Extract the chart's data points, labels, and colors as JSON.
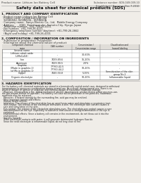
{
  "bg_color": "#f0ede8",
  "header_top_left": "Product name: Lithium Ion Battery Cell",
  "header_top_right": "Substance number: SDS-049-009-10\nEstablished / Revision: Dec.7,2010",
  "title": "Safety data sheet for chemical products (SDS)",
  "section1_title": "1. PRODUCT AND COMPANY IDENTIFICATION",
  "section1_lines": [
    "· Product name: Lithium Ion Battery Cell",
    "· Product code: Cylindrical-type cell",
    "  SV18650U, SV18650U-, SV18650A",
    "· Company name:  Sanyo Electric Co., Ltd.  Mobile Energy Company",
    "· Address:      2001  Kamikasai-cho, Sumoto-City, Hyogo, Japan",
    "· Telephone number:  +81-799-26-4111",
    "· Fax number:  +81-799-26-4121",
    "· Emergency telephone number (daytime): +81-799-26-2662",
    "  (Night and holiday) +81-799-26-4101"
  ],
  "section2_title": "2. COMPOSITION / INFORMATION ON INGREDIENTS",
  "section2_lines": [
    "· Substance or preparation: Preparation",
    "· Information about the chemical nature of product:"
  ],
  "table_headers": [
    "Component chemical\nname",
    "CAS number",
    "Concentration /\nConcentration range",
    "Classification and\nhazard labeling"
  ],
  "table_rows": [
    [
      "Several name",
      "",
      "",
      ""
    ],
    [
      "Lithium cobalt oxide\n(LiMnCoO4)",
      "-",
      "30-60%",
      ""
    ],
    [
      "Iron",
      "7439-89-6",
      "16-20%",
      "-"
    ],
    [
      "Aluminum",
      "7429-90-5",
      "2.0%",
      "-"
    ],
    [
      "Graphite\n(Made in graphite-1)\n(of Mo in graphite-1)",
      "77760-42-5\n77760-44-2",
      "10-20%",
      "-"
    ],
    [
      "Copper",
      "7440-50-8",
      "5-15%",
      "Sensitization of the skin\ngroup No.2"
    ],
    [
      "Organic electrolyte",
      "-",
      "10-20%",
      "Inflammable liquid"
    ]
  ],
  "section3_title": "3. HAZARDS IDENTIFICATION",
  "section3_para1": "For the battery cell, chemical materials are stored in a hermetically sealed metal case, designed to withstand",
  "section3_para2": "temperatures or pressures-combinations during normal use. As a result, during normal use, there is no",
  "section3_para3": "physical danger of ignition or explosion and thermal-danger of hazardous materials leakage.",
  "section3_para4": "  However, if exposed to a fire, added mechanical shocks, decomposed, amidst electric whilst any miss-use,",
  "section3_para5": "the gas maybe vented (or operate). The battery cell case will be penetrate of fire-particles, hazardous",
  "section3_para6": "materials may be released.",
  "section3_para7": "  Moreover, if heated strongly by the surrounding fire, acid gas may be emitted.",
  "section3_b1": "· Most important hazard and effects:",
  "section3_b2": "  Human health effects:",
  "section3_b3": "  Inhalation: The release of the electrolyte has an anesthesia action and stimulates a respiratory tract.",
  "section3_b4": "  Skin contact: The release of the electrolyte stimulates a skin. The electrolyte skin contact causes a",
  "section3_b5": "  sore and stimulation on the skin.",
  "section3_b6": "  Eye contact: The release of the electrolyte stimulates eyes. The electrolyte eye contact causes a sore",
  "section3_b7": "  and stimulation on the eye. Especially, a substance that causes a strong inflammation of the eye is",
  "section3_b8": "  contained.",
  "section3_b9": "  Environmental effects: Since a battery cell remains in the environment, do not throw out it into the",
  "section3_b10": "  environment.",
  "section3_b11": "· Specific hazards:",
  "section3_b12": "  If the electrolyte contacts with water, it will generate detrimental hydrogen fluoride.",
  "section3_b13": "  Since the neat electrolyte is inflammable liquid, do not long close to fire."
}
